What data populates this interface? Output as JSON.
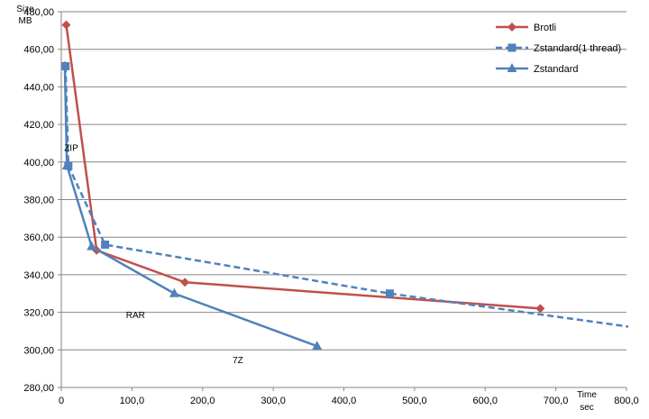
{
  "chart_data": {
    "type": "line",
    "title": "",
    "ylabel_lines": [
      "Size",
      "MB"
    ],
    "xlabel_lines": [
      "Time",
      "sec"
    ],
    "xlim": [
      0,
      800
    ],
    "ylim": [
      280,
      480
    ],
    "x_ticks": [
      0,
      100,
      200,
      300,
      400,
      500,
      600,
      700,
      800
    ],
    "x_tick_labels": [
      "0",
      "100,0",
      "200,0",
      "300,0",
      "400,0",
      "500,0",
      "600,0",
      "700,0",
      "800,0"
    ],
    "y_ticks": [
      280,
      300,
      320,
      340,
      360,
      380,
      400,
      420,
      440,
      460,
      480
    ],
    "y_tick_labels": [
      "280,00",
      "300,00",
      "320,00",
      "340,00",
      "360,00",
      "380,00",
      "400,00",
      "420,00",
      "440,00",
      "460,00",
      "480,00"
    ],
    "grid": "horizontal",
    "legend_position": "top-right",
    "series": [
      {
        "name": "Brotli",
        "color": "#c0504d",
        "marker": "diamond",
        "dash": "solid",
        "points": [
          [
            7,
            473
          ],
          [
            50,
            353
          ],
          [
            175,
            336
          ],
          [
            678,
            322
          ]
        ]
      },
      {
        "name": "Zstandard(1 thread)",
        "color": "#4f81bd",
        "marker": "square",
        "dash": "dashed",
        "points": [
          [
            6,
            451
          ],
          [
            10,
            398
          ],
          [
            62,
            356
          ],
          [
            465,
            330
          ],
          [
            810,
            312
          ]
        ]
      },
      {
        "name": "Zstandard",
        "color": "#4f81bd",
        "marker": "triangle",
        "dash": "solid",
        "points": [
          [
            5,
            451
          ],
          [
            8,
            398
          ],
          [
            43,
            355
          ],
          [
            160,
            330
          ],
          [
            362,
            302
          ]
        ]
      }
    ],
    "annotations": [
      {
        "text": "ZIP",
        "x": 14,
        "y": 406
      },
      {
        "text": "RAR",
        "x": 105,
        "y": 317
      },
      {
        "text": "7Z",
        "x": 250,
        "y": 293
      }
    ]
  }
}
